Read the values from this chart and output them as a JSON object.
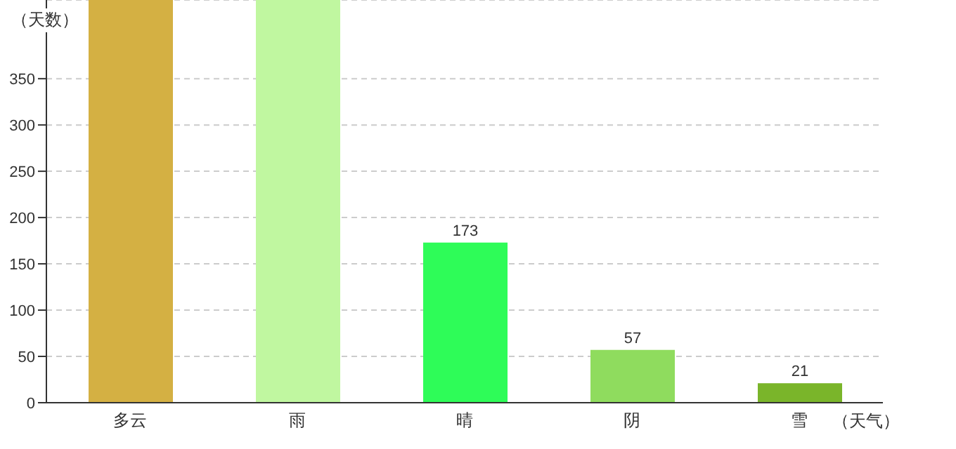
{
  "chart_data": {
    "type": "bar",
    "ylabel": "（天数）",
    "xlabel": "（天气）",
    "categories": [
      "多云",
      "雨",
      "晴",
      "阴",
      "雪"
    ],
    "values": [
      435,
      435,
      173,
      57,
      21
    ],
    "colors": [
      "#d4b043",
      "#c0f7a0",
      "#2efc58",
      "#8fdc5e",
      "#7ab52a"
    ],
    "value_labels": [
      null,
      null,
      "173",
      "57",
      "21"
    ],
    "ylim": [
      0,
      435
    ],
    "yticks": [
      0,
      50,
      100,
      150,
      200,
      250,
      300,
      350
    ],
    "grid": "y"
  }
}
